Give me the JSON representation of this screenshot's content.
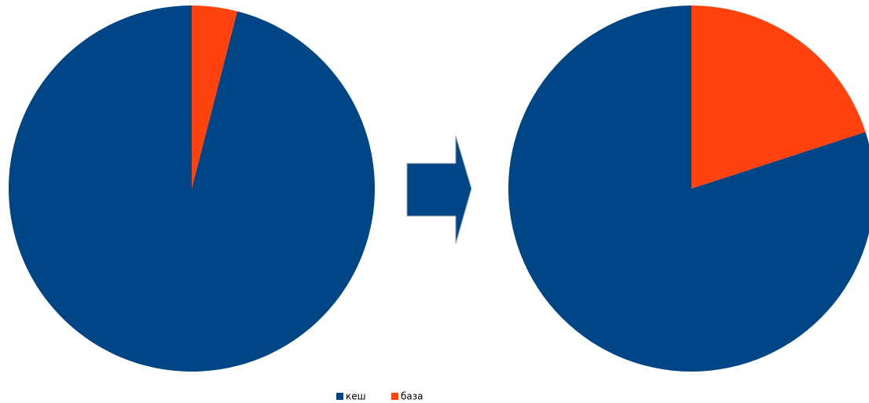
{
  "chart_data": [
    {
      "type": "pie",
      "categories": [
        "кеш",
        "база"
      ],
      "colors": [
        "#004586",
        "#ff420e"
      ],
      "values": [
        96,
        4
      ]
    },
    {
      "type": "pie",
      "values": [
        80,
        20
      ]
    }
  ]
}
